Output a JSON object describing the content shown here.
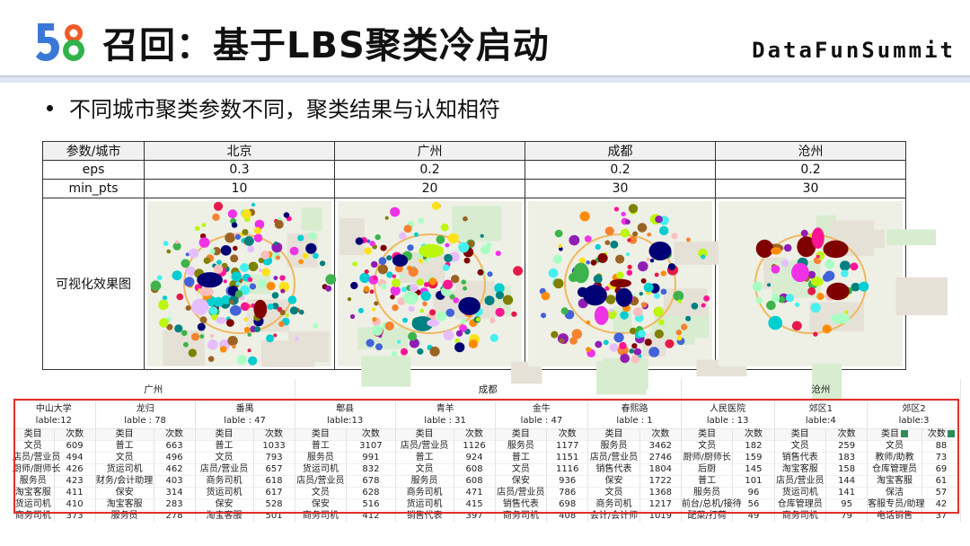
{
  "header": {
    "logo_text": "58",
    "title": "召回：基于LBS聚类冷启动",
    "brand": "DataFunSummit"
  },
  "bullet": "不同城市聚类参数不同，聚类结果与认知相符",
  "params_table": {
    "header_label": "参数/城市",
    "cities": [
      "北京",
      "广州",
      "成都",
      "沧州"
    ],
    "rows": [
      {
        "label": "eps",
        "values": [
          "0.3",
          "0.2",
          "0.2",
          "0.2"
        ]
      },
      {
        "label": "min_pts",
        "values": [
          "10",
          "20",
          "30",
          "30"
        ]
      }
    ],
    "viz_label": "可视化效果图"
  },
  "cluster_table": {
    "cities": [
      "广州",
      "成都",
      "沧州"
    ],
    "clusters": [
      {
        "name": "中山大学",
        "label": "lable:12"
      },
      {
        "name": "龙归",
        "label": "lable : 78"
      },
      {
        "name": "番禺",
        "label": "lable : 47"
      },
      {
        "name": "郫县",
        "label": "lable:13"
      },
      {
        "name": "青羊",
        "label": "lable : 31"
      },
      {
        "name": "金牛",
        "label": "lable : 47"
      },
      {
        "name": "春熙路",
        "label": "lable : 1"
      },
      {
        "name": "人民医院",
        "label": "lable : 13"
      },
      {
        "name": "郊区1",
        "label": "lable:4"
      },
      {
        "name": "郊区2",
        "label": "lable:3"
      }
    ],
    "col_headers": [
      "类目",
      "次数"
    ],
    "rows": [
      [
        "文员",
        "609",
        "普工",
        "663",
        "普工",
        "1033",
        "普工",
        "3107",
        "店员/营业员",
        "1126",
        "服务员",
        "1177",
        "服务员",
        "3462",
        "文员",
        "182",
        "文员",
        "259",
        "文员",
        "88"
      ],
      [
        "店员/营业员",
        "494",
        "文员",
        "496",
        "文员",
        "793",
        "服务员",
        "991",
        "普工",
        "924",
        "普工",
        "1151",
        "店员/营业员",
        "2746",
        "厨师/厨师长",
        "159",
        "销售代表",
        "183",
        "教师/助教",
        "73"
      ],
      [
        "厨师/厨师长",
        "426",
        "货运司机",
        "462",
        "店员/营业员",
        "657",
        "货运司机",
        "832",
        "文员",
        "608",
        "文员",
        "1116",
        "销售代表",
        "1804",
        "后厨",
        "145",
        "淘宝客服",
        "158",
        "仓库管理员",
        "69"
      ],
      [
        "服务员",
        "423",
        "财务/会计助理",
        "403",
        "商务司机",
        "618",
        "店员/营业员",
        "678",
        "服务员",
        "608",
        "保安",
        "936",
        "保安",
        "1722",
        "普工",
        "101",
        "店员/营业员",
        "144",
        "淘宝客服",
        "61"
      ],
      [
        "淘宝客服",
        "411",
        "保安",
        "314",
        "货运司机",
        "617",
        "文员",
        "628",
        "商务司机",
        "471",
        "店员/营业员",
        "786",
        "文员",
        "1368",
        "服务员",
        "96",
        "货运司机",
        "141",
        "保洁",
        "57"
      ],
      [
        "货运司机",
        "410",
        "淘宝客服",
        "283",
        "保安",
        "528",
        "保安",
        "516",
        "货运司机",
        "415",
        "销售代表",
        "698",
        "商务司机",
        "1217",
        "前台/总机/接待",
        "56",
        "仓库管理员",
        "95",
        "客服专员/助理",
        "42"
      ],
      [
        "商务司机",
        "373",
        "服务员",
        "278",
        "淘宝客服",
        "501",
        "商务司机",
        "412",
        "销售代表",
        "397",
        "商务司机",
        "408",
        "会计/会计师",
        "1019",
        "配菜/打荷",
        "49",
        "商务司机",
        "79",
        "电话销售",
        "37"
      ]
    ]
  },
  "colors": {
    "highlight_box": "#e0302a",
    "header_rule": "#dfe6f1"
  }
}
